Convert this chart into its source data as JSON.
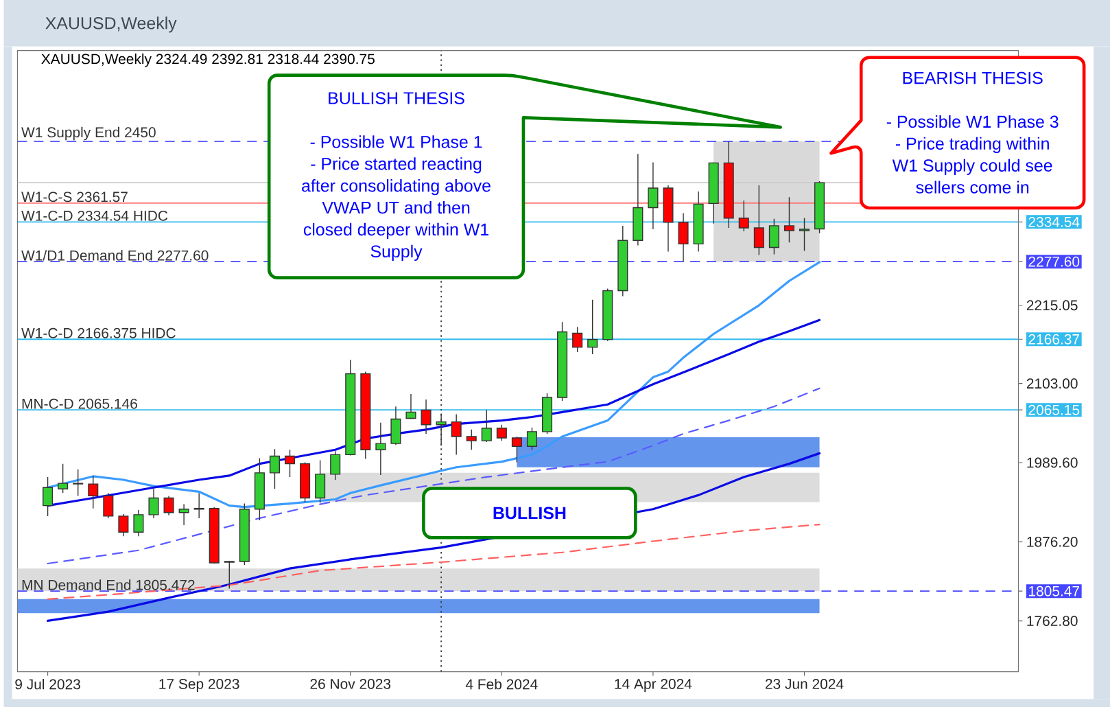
{
  "chart_data": {
    "type": "candlestick",
    "title": "XAUUSD,Weekly",
    "subtitle": "XAUUSD,Weekly 2324.49 2392.81 2318.44 2390.75",
    "x": [
      "2023-07-09",
      "2023-07-16",
      "2023-07-23",
      "2023-07-30",
      "2023-08-06",
      "2023-08-13",
      "2023-08-20",
      "2023-08-27",
      "2023-09-03",
      "2023-09-10",
      "2023-09-17",
      "2023-09-24",
      "2023-10-01",
      "2023-10-08",
      "2023-10-15",
      "2023-10-22",
      "2023-10-29",
      "2023-11-05",
      "2023-11-12",
      "2023-11-19",
      "2023-11-26",
      "2023-12-03",
      "2023-12-10",
      "2023-12-17",
      "2023-12-24",
      "2023-12-31",
      "2024-01-07",
      "2024-01-14",
      "2024-01-21",
      "2024-01-28",
      "2024-02-04",
      "2024-02-11",
      "2024-02-18",
      "2024-02-25",
      "2024-03-03",
      "2024-03-10",
      "2024-03-17",
      "2024-03-24",
      "2024-03-31",
      "2024-04-07",
      "2024-04-14",
      "2024-04-21",
      "2024-04-28",
      "2024-05-05",
      "2024-05-12",
      "2024-05-19",
      "2024-05-26",
      "2024-06-02",
      "2024-06-09",
      "2024-06-16",
      "2024-06-23",
      "2024-06-30"
    ],
    "ohlc": [
      [
        1928,
        1969,
        1913,
        1954
      ],
      [
        1952,
        1988,
        1946,
        1960
      ],
      [
        1960,
        1980,
        1942,
        1959
      ],
      [
        1959,
        1971,
        1924,
        1942
      ],
      [
        1942,
        1946,
        1910,
        1913
      ],
      [
        1913,
        1916,
        1884,
        1890
      ],
      [
        1890,
        1922,
        1884,
        1915
      ],
      [
        1915,
        1952,
        1910,
        1939
      ],
      [
        1939,
        1942,
        1914,
        1918
      ],
      [
        1918,
        1930,
        1900,
        1923
      ],
      [
        1923,
        1946,
        1910,
        1924
      ],
      [
        1924,
        1926,
        1845,
        1846
      ],
      [
        1847,
        1849,
        1809,
        1848
      ],
      [
        1848,
        1931,
        1843,
        1923
      ],
      [
        1923,
        1996,
        1907,
        1975
      ],
      [
        1975,
        2009,
        1952,
        1999
      ],
      [
        1999,
        2008,
        1969,
        1988
      ],
      [
        1988,
        1990,
        1933,
        1939
      ],
      [
        1939,
        1993,
        1932,
        1973
      ],
      [
        1973,
        2006,
        1965,
        2001
      ],
      [
        2001,
        2137,
        2000,
        2117
      ],
      [
        2117,
        2120,
        1995,
        2008
      ],
      [
        2008,
        2047,
        1972,
        2017
      ],
      [
        2017,
        2070,
        2015,
        2052
      ],
      [
        2053,
        2088,
        2052,
        2062
      ],
      [
        2065,
        2080,
        2031,
        2044
      ],
      [
        2044,
        2060,
        2014,
        2048
      ],
      [
        2048,
        2059,
        2001,
        2027
      ],
      [
        2027,
        2037,
        2008,
        2021
      ],
      [
        2021,
        2065,
        2019,
        2039
      ],
      [
        2039,
        2044,
        2021,
        2025
      ],
      [
        2025,
        2027,
        1990,
        2013
      ],
      [
        2013,
        2040,
        2008,
        2034
      ],
      [
        2034,
        2089,
        2031,
        2083
      ],
      [
        2083,
        2191,
        2078,
        2177
      ],
      [
        2175,
        2184,
        2148,
        2155
      ],
      [
        2155,
        2223,
        2145,
        2166
      ],
      [
        2166,
        2239,
        2164,
        2236
      ],
      [
        2236,
        2329,
        2228,
        2308
      ],
      [
        2308,
        2432,
        2301,
        2355
      ],
      [
        2355,
        2420,
        2324,
        2383
      ],
      [
        2383,
        2387,
        2292,
        2334
      ],
      [
        2334,
        2347,
        2277,
        2303
      ],
      [
        2303,
        2378,
        2292,
        2360
      ],
      [
        2361,
        2420,
        2332,
        2419
      ],
      [
        2419,
        2450,
        2326,
        2340
      ],
      [
        2340,
        2365,
        2321,
        2326
      ],
      [
        2326,
        2387,
        2287,
        2298
      ],
      [
        2298,
        2339,
        2288,
        2329
      ],
      [
        2329,
        2370,
        2305,
        2322
      ],
      [
        2322,
        2340,
        2293,
        2324
      ],
      [
        2324.49,
        2392.81,
        2318.44,
        2390.75
      ]
    ],
    "colors": [
      "#32cd32",
      "#32cd32",
      "#ff0000",
      "#ff0000",
      "#ff0000",
      "#ff0000",
      "#32cd32",
      "#32cd32",
      "#ff0000",
      "#32cd32",
      "#32cd32",
      "#ff0000",
      "#32cd32",
      "#32cd32",
      "#32cd32",
      "#32cd32",
      "#ff0000",
      "#ff0000",
      "#32cd32",
      "#32cd32",
      "#32cd32",
      "#ff0000",
      "#32cd32",
      "#32cd32",
      "#32cd32",
      "#ff0000",
      "#32cd32",
      "#ff0000",
      "#ff0000",
      "#32cd32",
      "#ff0000",
      "#ff0000",
      "#32cd32",
      "#32cd32",
      "#32cd32",
      "#ff0000",
      "#32cd32",
      "#32cd32",
      "#32cd32",
      "#32cd32",
      "#32cd32",
      "#ff0000",
      "#ff0000",
      "#32cd32",
      "#32cd32",
      "#ff0000",
      "#ff0000",
      "#ff0000",
      "#32cd32",
      "#ff0000",
      "#32cd32",
      "#32cd32"
    ],
    "series": [
      {
        "type": "line",
        "color": "#d9d9d9",
        "x": [
          "2024-05-12",
          "2024-06-30"
        ],
        "values": [
          null,
          null
        ],
        "lower": [
          2277.6,
          2277.6
        ],
        "upper": [
          2450,
          2450
        ]
      },
      {
        "type": "line",
        "color": "#dcdcdc",
        "x": [
          "2023-11-12",
          "2024-06-30"
        ],
        "values": [
          null,
          null
        ],
        "lower": [
          1933,
          1933
        ],
        "upper": [
          1975,
          1975
        ]
      },
      {
        "type": "line",
        "color": "#6495ed",
        "x": [
          "2024-02-11",
          "2024-06-30"
        ],
        "values": [
          null,
          null
        ],
        "lower": [
          1983,
          1983
        ],
        "upper": [
          2026,
          2026
        ]
      },
      {
        "type": "line",
        "color": "#dcdcdc",
        "x": [
          "2023-06-25",
          "2024-06-30"
        ],
        "values": [
          null,
          null
        ],
        "lower": [
          1805.5,
          1805.5
        ],
        "upper": [
          1838,
          1838
        ]
      },
      {
        "type": "line",
        "color": "#6495ed",
        "x": [
          "2023-06-25",
          "2024-06-30"
        ],
        "values": [
          null,
          null
        ],
        "lower": [
          1774,
          1774
        ],
        "upper": [
          1794,
          1794
        ]
      },
      {
        "type": "line",
        "color": "#3a9cff",
        "line_style": "solid",
        "x": [
          "2023-07-09",
          "2023-07-30",
          "2023-08-13",
          "2023-08-27",
          "2023-09-17",
          "2023-10-01",
          "2023-10-08",
          "2023-10-29",
          "2023-11-19",
          "2023-11-26",
          "2023-12-10",
          "2024-01-07",
          "2024-01-14",
          "2024-02-04",
          "2024-02-18",
          "2024-02-25",
          "2024-03-03",
          "2024-03-24",
          "2024-04-14",
          "2024-04-21",
          "2024-04-28",
          "2024-05-12",
          "2024-06-02",
          "2024-06-16",
          "2024-06-30"
        ],
        "values": [
          1954,
          1970,
          1965,
          1956,
          1948,
          1928,
          1926,
          1931,
          1937,
          1946,
          1957,
          1978,
          1983,
          1991,
          2001,
          2013,
          2027,
          2050,
          2112,
          2120,
          2140,
          2174,
          2215,
          2250,
          2277
        ]
      },
      {
        "type": "line",
        "color": "#0a0ae6",
        "line_style": "solid",
        "x": [
          "2023-07-09",
          "2023-07-30",
          "2023-08-27",
          "2023-09-17",
          "2023-10-01",
          "2023-10-15",
          "2023-10-29",
          "2023-11-19",
          "2023-12-03",
          "2023-12-17",
          "2023-12-31",
          "2024-01-14",
          "2024-02-04",
          "2024-02-18",
          "2024-03-03",
          "2024-03-24",
          "2024-04-14",
          "2024-04-28",
          "2024-05-19",
          "2024-06-02",
          "2024-06-16",
          "2024-06-30"
        ],
        "values": [
          1928,
          1939,
          1954,
          1965,
          1971,
          1988,
          1996,
          2008,
          2024,
          2031,
          2037,
          2045,
          2050,
          2055,
          2062,
          2073,
          2102,
          2119,
          2145,
          2163,
          2178,
          2194
        ]
      },
      {
        "type": "line",
        "color": "#5a5aff",
        "line_style": "dashed",
        "x": [
          "2023-07-09",
          "2023-08-20",
          "2023-09-17",
          "2023-10-15",
          "2023-11-12",
          "2023-12-03",
          "2023-12-31",
          "2024-01-28",
          "2024-03-03",
          "2024-03-24",
          "2024-04-14",
          "2024-04-28",
          "2024-05-19",
          "2024-06-09",
          "2024-06-30"
        ],
        "values": [
          1845,
          1864,
          1887,
          1910,
          1930,
          1943,
          1956,
          1969,
          1983,
          1991,
          2014,
          2031,
          2050,
          2070,
          2096
        ]
      },
      {
        "type": "line",
        "color": "#0a0ae6",
        "line_style": "solid",
        "x": [
          "2023-07-09",
          "2023-08-06",
          "2023-09-03",
          "2023-10-01",
          "2023-10-29",
          "2023-11-26",
          "2024-01-07",
          "2024-04-14",
          "2024-05-05",
          "2024-05-26",
          "2024-06-16",
          "2024-06-30"
        ],
        "values": [
          1763,
          1776,
          1796,
          1815,
          1838,
          1851,
          1868,
          1923,
          1943,
          1969,
          1988,
          2003
        ]
      },
      {
        "type": "line",
        "color": "#ff6060",
        "line_style": "dashed",
        "x": [
          "2023-07-09",
          "2023-08-13",
          "2023-10-01",
          "2023-11-12",
          "2024-01-07",
          "2024-03-03",
          "2024-04-14",
          "2024-05-26",
          "2024-06-30"
        ],
        "values": [
          1794,
          1802,
          1814,
          1835,
          1847,
          1861,
          1877,
          1892,
          1901
        ]
      }
    ],
    "xlim": [
      "2023-06-25",
      "2024-09-30"
    ],
    "xticks": [
      {
        "value": "2023-07-09",
        "label": "9 Jul 2023"
      },
      {
        "value": "2023-09-17",
        "label": "17 Sep 2023"
      },
      {
        "value": "2023-11-26",
        "label": "26 Nov 2023"
      },
      {
        "value": "2024-02-04",
        "label": "4 Feb 2024"
      },
      {
        "value": "2024-04-14",
        "label": "14 Apr 2024"
      },
      {
        "value": "2024-06-23",
        "label": "23 Jun 2024"
      }
    ],
    "ylim": [
      1690,
      2580
    ],
    "yticks": [
      2334.54,
      {
        "value": 2277.6,
        "label": "2277.60"
      },
      2215.05,
      2166.37,
      {
        "value": 2103,
        "label": "2103.00"
      },
      2065.15,
      {
        "value": 1989.6,
        "label": "1989.60"
      },
      {
        "value": 1876.2,
        "label": "1876.20"
      },
      1805.47,
      {
        "value": 1762.8,
        "label": "1762.80"
      }
    ],
    "ref_lines": [
      {
        "axis": "y",
        "value": 2450,
        "label": "W1 Supply End 2450",
        "color": "#4646ff",
        "line_style": "dashed"
      },
      {
        "axis": "y",
        "value": 2390.75,
        "color": "#cccccc",
        "line_style": "solid"
      },
      {
        "axis": "y",
        "value": 2361.57,
        "label": "W1-C-S 2361.57",
        "color": "#ff7070",
        "line_style": "solid"
      },
      {
        "axis": "y",
        "value": 2334.54,
        "label": "W1-C-D 2334.54 HIDC",
        "color": "#33bbee",
        "line_style": "solid"
      },
      {
        "axis": "y",
        "value": 2277.6,
        "label": "W1/D1 Demand End 2277.60",
        "color": "#4646ff",
        "line_style": "dashed"
      },
      {
        "axis": "y",
        "value": 2166.375,
        "label": "W1-C-D 2166.375 HIDC",
        "color": "#33bbee",
        "line_style": "solid"
      },
      {
        "axis": "y",
        "value": 2065.146,
        "label": "MN-C-D 2065.146",
        "color": "#33bbee",
        "line_style": "solid"
      },
      {
        "axis": "y",
        "value": 1805.472,
        "label": "MN Demand End 1805.472",
        "color": "#4646ff",
        "line_style": "dashed"
      },
      {
        "axis": "x",
        "value": "2024-01-07",
        "color": "#404040",
        "line_style": "dotted"
      }
    ],
    "annotations": [
      "BULLISH THESIS",
      "- Possible W1 Phase 1",
      "- Price started reacting after consolidating above VWAP UT and then closed deeper within W1 Supply",
      "BEARISH THESIS",
      "- Possible W1 Phase 3",
      "- Price trading within W1 Supply could see sellers come in",
      "BULLISH"
    ]
  }
}
